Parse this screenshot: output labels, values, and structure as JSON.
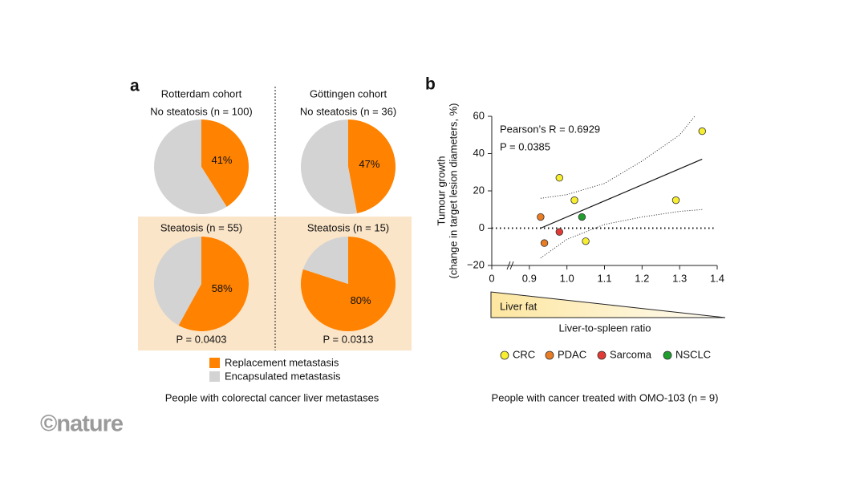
{
  "figure": {
    "panel_a": {
      "label": "a",
      "cohorts": [
        "Rotterdam cohort",
        "Göttingen cohort"
      ],
      "legend": [
        {
          "name": "Replacement metastasis",
          "color": "#ff8200"
        },
        {
          "name": "Encapsulated metastasis",
          "color": "#d3d3d3"
        }
      ],
      "caption": "People with colorectal cancer liver metastases"
    },
    "panel_b": {
      "label": "b",
      "caption": "People with cancer treated with OMO-103 (n = 9)"
    },
    "credit": "©nature"
  },
  "chart_data": [
    {
      "type": "pie",
      "title": "No steatosis (n = 100)",
      "values": [
        41,
        59
      ],
      "value_labels": [
        "41%",
        null
      ],
      "colors": [
        "#ff8200",
        "#d3d3d3"
      ]
    },
    {
      "type": "pie",
      "title": "No steatosis (n = 36)",
      "values": [
        47,
        53
      ],
      "value_labels": [
        "47%",
        null
      ],
      "colors": [
        "#ff8200",
        "#d3d3d3"
      ]
    },
    {
      "type": "pie",
      "title": "Steatosis (n = 55)",
      "values": [
        58,
        42
      ],
      "value_labels": [
        "58%",
        null
      ],
      "colors": [
        "#ff8200",
        "#d3d3d3"
      ],
      "annotation": "P = 0.0403"
    },
    {
      "type": "pie",
      "title": "Steatosis (n = 15)",
      "values": [
        80,
        20
      ],
      "value_labels": [
        "80%",
        null
      ],
      "colors": [
        "#ff8200",
        "#d3d3d3"
      ],
      "annotation": "P = 0.0313"
    },
    {
      "type": "scatter",
      "ylabel": [
        "Tumour growth",
        "(change in target lesion diameters, %)"
      ],
      "xlabel": "Liver-to-spleen ratio",
      "band_label": "Liver fat",
      "annotations": [
        "Pearson’s R = 0.6929",
        "P = 0.0385"
      ],
      "xlim": [
        0,
        1.4
      ],
      "xbreak": [
        0,
        0.8
      ],
      "xticks": [
        0,
        0.9,
        {
          "value": 1,
          "label": "1.0"
        },
        1.1,
        1.2,
        1.3,
        1.4
      ],
      "ylim": [
        -20,
        60
      ],
      "yticks": [
        {
          "value": -20,
          "label": "−20"
        },
        0,
        20,
        40,
        60
      ],
      "reference_line": 0,
      "series": [
        {
          "name": "CRC",
          "color": "#f7ee2f",
          "x": [
            0.98,
            1.02,
            1.05,
            1.29,
            1.36
          ],
          "values": [
            27,
            15,
            -7,
            15,
            52
          ]
        },
        {
          "name": "PDAC",
          "color": "#ea7d24",
          "x": [
            0.93,
            0.94
          ],
          "values": [
            6,
            -8
          ]
        },
        {
          "name": "Sarcoma",
          "color": "#e23b35",
          "x": [
            0.98
          ],
          "values": [
            -2
          ]
        },
        {
          "name": "NSCLC",
          "color": "#1f9e2e",
          "x": [
            1.04
          ],
          "values": [
            6
          ]
        }
      ],
      "fit": {
        "x": [
          0.93,
          1.36
        ],
        "values": [
          0,
          37
        ]
      },
      "ci_upper": {
        "x": [
          0.93,
          1.0,
          1.1,
          1.2,
          1.3,
          1.34
        ],
        "values": [
          16,
          18,
          24,
          36,
          50,
          60
        ]
      },
      "ci_lower": {
        "x": [
          0.93,
          1.0,
          1.1,
          1.2,
          1.3,
          1.36
        ],
        "values": [
          -16,
          -6,
          2,
          6,
          9,
          10
        ]
      }
    }
  ]
}
